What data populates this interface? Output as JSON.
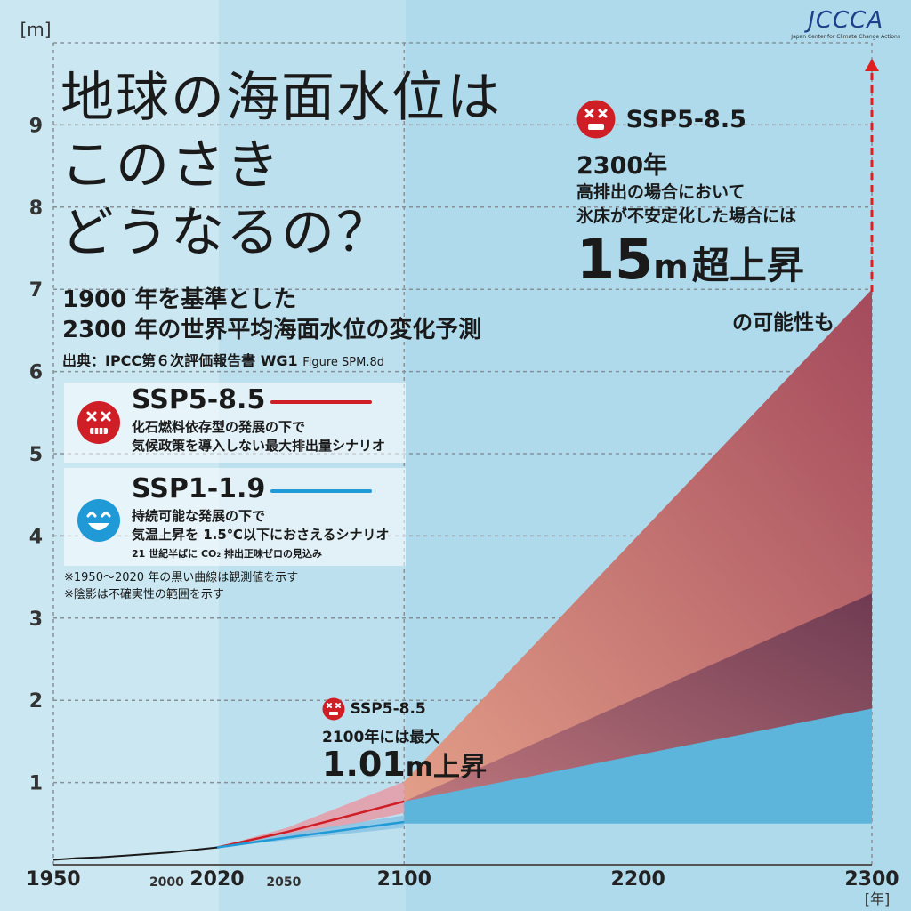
{
  "title_lines": [
    "地球の海面水位は",
    "このさき",
    "どうなるの？"
  ],
  "subtitle_lines": [
    "1900 年を基準とした",
    "2300 年の世界平均海面水位の変化予測"
  ],
  "source_main": "出典：IPCC第６次評価報告書 WG1",
  "source_fig": "Figure SPM.8d",
  "legend": [
    {
      "name": "SSP5-8.5",
      "desc1": "化石燃料依存型の発展の下で",
      "desc2": "気候政策を導入しない最大排出量シナリオ",
      "desc3": "",
      "color": "#d01e26",
      "face": "cross-eyes-face-icon"
    },
    {
      "name": "SSP1-1.9",
      "desc1": "持続可能な発展の下で",
      "desc2": "気温上昇を 1.5℃以下におさえるシナリオ",
      "desc3": "21 世紀半ばに CO₂ 排出正味ゼロの見込み",
      "color": "#1f9ad6",
      "face": "smiling-face-icon"
    }
  ],
  "notes": [
    "※1950～2020 年の黒い曲線は観測値を示す",
    "※陰影は不確実性の範囲を示す"
  ],
  "ann2100": {
    "scenario": "SSP5-8.5",
    "line1": "2100年には最大",
    "value": "1.01",
    "unit": "m",
    "suffix": "上昇"
  },
  "ann2300": {
    "scenario": "SSP5-8.5",
    "year": "2300年",
    "line1": "高排出の場合において",
    "line2": "氷床が不安定化した場合には",
    "value": "15",
    "unit": "m",
    "suffix": "超上昇",
    "line3": "の可能性も"
  },
  "brand": {
    "logo": "JCCCA",
    "tagline": "Japan Center for Climate Change Actions"
  },
  "colors": {
    "ssp585": "#d01e26",
    "ssp119": "#1f9ad6",
    "observed": "#1a1a1a"
  },
  "chart_data": {
    "type": "area",
    "ylabel": "[m]",
    "xlabel": "[年]",
    "ylim": [
      0,
      10
    ],
    "xlim": [
      1950,
      2300
    ],
    "y_ticks": [
      1,
      2,
      3,
      4,
      5,
      6,
      7,
      8,
      9
    ],
    "x_ticks_major": [
      1950,
      2020,
      2100,
      2200,
      2300
    ],
    "x_ticks_minor": [
      2000,
      2050
    ],
    "grid": true,
    "observed": {
      "x": [
        1950,
        1960,
        1970,
        1980,
        1990,
        2000,
        2010,
        2020
      ],
      "y": [
        0.06,
        0.08,
        0.09,
        0.11,
        0.13,
        0.15,
        0.18,
        0.21
      ]
    },
    "ssp585_2100": {
      "x": [
        2020,
        2050,
        2100
      ],
      "median": [
        0.21,
        0.4,
        0.77
      ],
      "low": [
        0.21,
        0.32,
        0.63
      ],
      "high": [
        0.21,
        0.45,
        1.01
      ]
    },
    "ssp119_2100": {
      "x": [
        2020,
        2050,
        2100
      ],
      "median": [
        0.21,
        0.33,
        0.52
      ],
      "low": [
        0.21,
        0.3,
        0.45
      ],
      "high": [
        0.21,
        0.38,
        0.6
      ]
    },
    "ssp585_2300": {
      "x": [
        2100,
        2300
      ],
      "low": [
        0.5,
        1.9
      ],
      "likely_high": [
        0.77,
        3.3
      ],
      "high": [
        1.01,
        7.0
      ]
    },
    "ssp119_2300": {
      "x": [
        2100,
        2300
      ],
      "low": [
        0.5,
        0.5
      ],
      "high": [
        0.77,
        1.9
      ]
    }
  }
}
